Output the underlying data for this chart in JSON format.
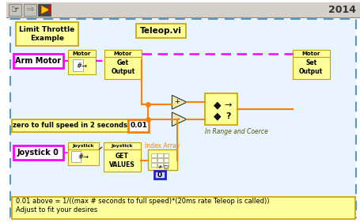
{
  "fig_width": 4.55,
  "fig_height": 2.82,
  "dpi": 100,
  "bg_color": "#ffffff",
  "outer_border_color": "#5599cc",
  "title_2014": "2014",
  "label_limit_throttle": "Limit Throttle\nExample",
  "label_teleop": "Teleop.vi",
  "label_arm_motor": "Arm Motor",
  "label_joystick": "Joystick 0",
  "label_zero_speed": "zero to full speed in 2 seconds",
  "label_001": "0.01",
  "label_index_array": "Index Array",
  "label_in_range": "In Range and Coerce",
  "label_note": "0.01 above = 1/((max # seconds to full speed)*(20ms rate Teleop is called))\nAdjust to fit your desires",
  "note_bg": "#ffffa0",
  "orange": "#ff8000",
  "magenta": "#ff00ff",
  "magenta_dashed": "#ff44ff",
  "yellow_box": "#ffff99",
  "yellow_border": "#c8a000",
  "light_blue_bg": "#e8f4ff",
  "blue_border": "#5599cc",
  "toolbar_bg": "#d4d0c8"
}
